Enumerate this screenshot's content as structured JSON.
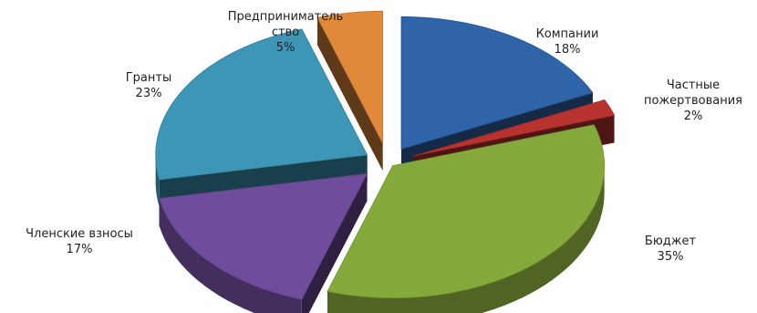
{
  "chart_data": {
    "type": "pie",
    "style": "3d-exploded",
    "slices": [
      {
        "label_lines": [
          "Компании"
        ],
        "percent_label": "18%",
        "value": 18,
        "color": "#2f64a8"
      },
      {
        "label_lines": [
          "Частные",
          "пожертвования"
        ],
        "percent_label": "2%",
        "value": 2,
        "color": "#b8322f"
      },
      {
        "label_lines": [
          "Бюджет"
        ],
        "percent_label": "35%",
        "value": 35,
        "color": "#86a93b"
      },
      {
        "label_lines": [
          "Членские взносы"
        ],
        "percent_label": "17%",
        "value": 17,
        "color": "#6f4d9c"
      },
      {
        "label_lines": [
          "Гранты"
        ],
        "percent_label": "23%",
        "value": 23,
        "color": "#3e96b6"
      },
      {
        "label_lines": [
          "Предприниматель",
          "ство"
        ],
        "percent_label": "5%",
        "value": 5,
        "color": "#e0893b"
      }
    ],
    "legend": "none"
  }
}
